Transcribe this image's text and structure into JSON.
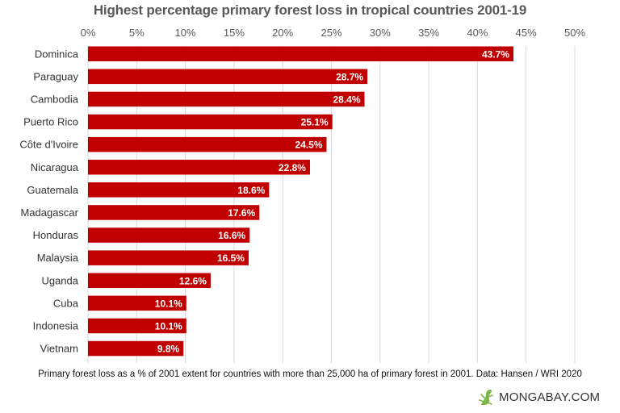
{
  "chart_data": {
    "type": "bar",
    "orientation": "horizontal",
    "title": "Highest percentage primary forest loss in tropical countries 2001-19",
    "categories": [
      "Dominica",
      "Paraguay",
      "Cambodia",
      "Puerto Rico",
      "Côte d'Ivoire",
      "Nicaragua",
      "Guatemala",
      "Madagascar",
      "Honduras",
      "Malaysia",
      "Uganda",
      "Cuba",
      "Indonesia",
      "Vietnam"
    ],
    "values": [
      43.7,
      28.7,
      28.4,
      25.1,
      24.5,
      22.8,
      18.6,
      17.6,
      16.6,
      16.5,
      12.6,
      10.1,
      10.1,
      9.8
    ],
    "data_labels": [
      "43.7%",
      "28.7%",
      "28.4%",
      "25.1%",
      "24.5%",
      "22.8%",
      "18.6%",
      "17.6%",
      "16.6%",
      "16.5%",
      "12.6%",
      "10.1%",
      "10.1%",
      "9.8%"
    ],
    "xlim": [
      0,
      50
    ],
    "xticks": [
      0,
      5,
      10,
      15,
      20,
      25,
      30,
      35,
      40,
      45,
      50
    ],
    "xtick_labels": [
      "0%",
      "5%",
      "10%",
      "15%",
      "20%",
      "25%",
      "30%",
      "35%",
      "40%",
      "45%",
      "50%"
    ],
    "axis_position": "top",
    "grid": true,
    "bar_color": "#c00000"
  },
  "footnote": "Primary forest loss as a % of 2001 extent for countries with more than 25,000 ha of primary forest in 2001. Data: Hansen / WRI  2020",
  "logo": {
    "text": "MONGABAY.COM",
    "icon": "gecko-icon",
    "icon_color": "#7ab648"
  }
}
